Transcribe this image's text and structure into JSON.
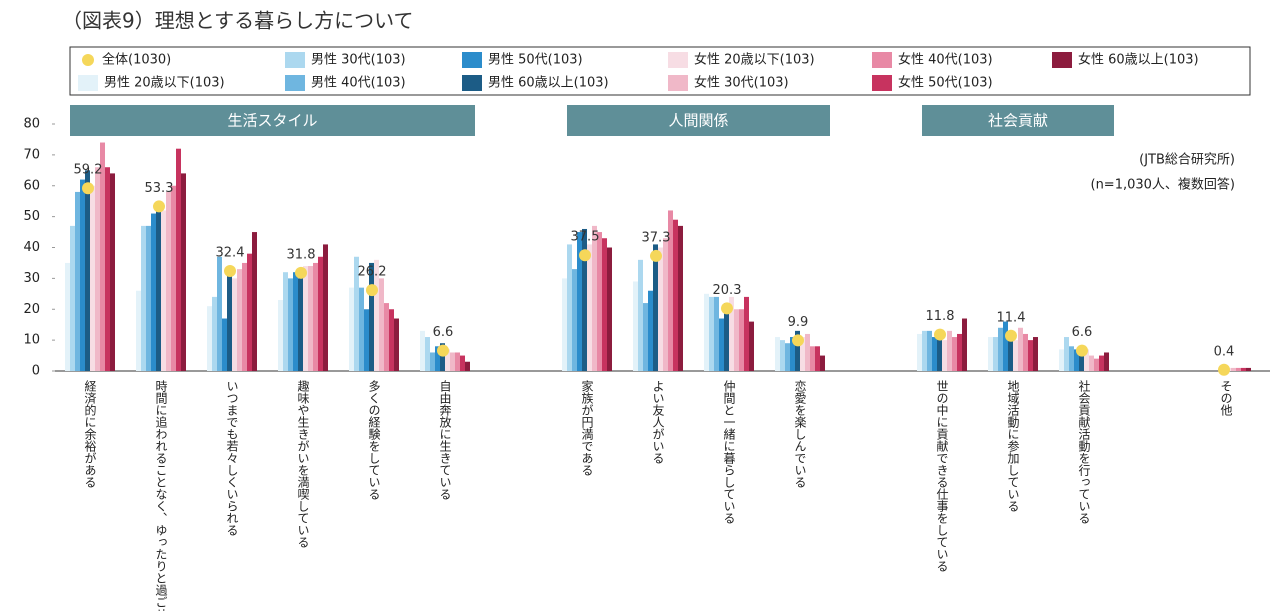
{
  "chart_data": {
    "type": "bar",
    "title": "（図表9）理想とする暮らし方について",
    "notes": [
      "(JTB総合研究所)",
      "(n=1,030人、複数回答)"
    ],
    "groups": [
      "生活スタイル",
      "人間関係",
      "社会貢献"
    ],
    "categories": [
      "経済的に余裕がある",
      "時間に追われることなく、ゆったりと過ごせる",
      "いつまでも若々しくいられる",
      "趣味や生きがいを満喫している",
      "多くの経験をしている",
      "自由奔放に生きている",
      "家族が円満である",
      "よい友人がいる",
      "仲間と一緒に暮らしている",
      "恋愛を楽しんでいる",
      "世の中に貢献できる仕事をしている",
      "地域活動に参加している",
      "社会貢献活動を行っている",
      "その他"
    ],
    "ylim": [
      0,
      80
    ],
    "yticks": [
      0,
      10,
      20,
      30,
      40,
      50,
      60,
      70,
      80
    ],
    "overall": {
      "name": "全体(1030)",
      "color": "#f5d75a",
      "values": [
        59.2,
        53.3,
        32.4,
        31.8,
        26.2,
        6.6,
        37.5,
        37.3,
        20.3,
        9.9,
        11.8,
        11.4,
        6.6,
        0.4
      ]
    },
    "series": [
      {
        "name": "男性 20歳以下(103)",
        "color": "#e3f2f9",
        "values": [
          35,
          26,
          21,
          23,
          27,
          13,
          30,
          29,
          25,
          11,
          12,
          11,
          7,
          0
        ]
      },
      {
        "name": "男性 30代(103)",
        "color": "#acd8ef",
        "values": [
          47,
          47,
          24,
          32,
          37,
          11,
          41,
          36,
          24,
          10,
          13,
          11,
          11,
          0
        ]
      },
      {
        "name": "男性 40代(103)",
        "color": "#6fb6e0",
        "values": [
          58,
          47,
          37,
          30,
          27,
          6,
          33,
          22,
          24,
          9,
          13,
          14,
          8,
          0
        ]
      },
      {
        "name": "男性 50代(103)",
        "color": "#2b8ccb",
        "values": [
          62,
          51,
          17,
          32,
          20,
          8,
          45,
          26,
          17,
          11,
          11,
          16,
          7,
          0
        ]
      },
      {
        "name": "男性 60歳以上(103)",
        "color": "#1c5c86",
        "values": [
          65,
          53,
          33,
          30,
          35,
          9,
          46,
          41,
          22,
          13,
          13,
          12,
          8,
          0
        ]
      },
      {
        "name": "女性 20歳以下(103)",
        "color": "#f7dde4",
        "values": [
          60,
          52,
          30,
          34,
          36,
          7,
          41,
          40,
          24,
          11,
          10,
          10,
          7,
          1
        ]
      },
      {
        "name": "女性 30代(103)",
        "color": "#f0b8c8",
        "values": [
          66,
          58,
          33,
          34,
          30,
          6,
          47,
          43,
          20,
          12,
          13,
          14,
          5,
          1
        ]
      },
      {
        "name": "女性 40代(103)",
        "color": "#e889a5",
        "values": [
          74,
          60,
          35,
          35,
          22,
          6,
          45,
          52,
          20,
          8,
          11,
          12,
          4,
          1
        ]
      },
      {
        "name": "女性 50代(103)",
        "color": "#c7335f",
        "values": [
          66,
          72,
          38,
          37,
          20,
          5,
          43,
          49,
          24,
          8,
          12,
          10,
          5,
          1
        ]
      },
      {
        "name": "女性 60歳以上(103)",
        "color": "#8c1c3e",
        "values": [
          64,
          64,
          45,
          41,
          17,
          3,
          40,
          47,
          16,
          5,
          17,
          11,
          6,
          1
        ]
      }
    ]
  }
}
